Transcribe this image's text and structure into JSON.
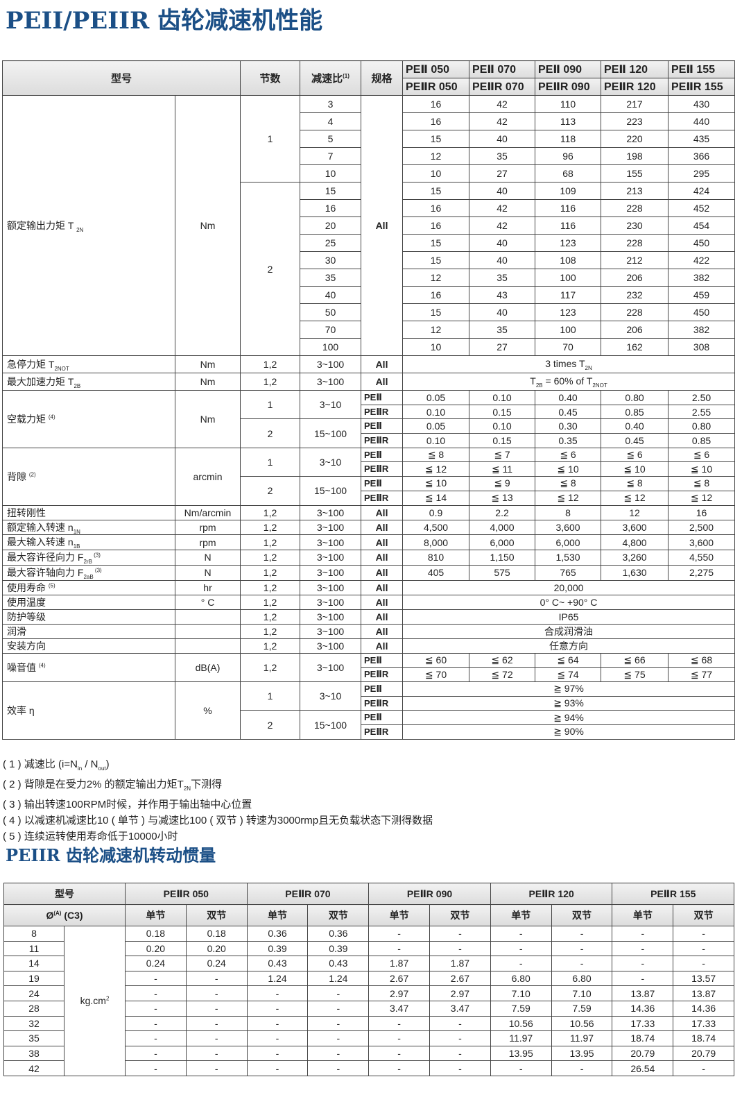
{
  "title": "PEII/PEIIR 齿轮减速机性能",
  "header": {
    "model": "型号",
    "stages": "节数",
    "ratio": "减速比",
    "ratio_note": "(1)",
    "spec": "规格",
    "models_a": [
      "PEⅡ 050",
      "PEⅡ 070",
      "PEⅡ 090",
      "PEⅡ 120",
      "PEⅡ 155"
    ],
    "models_b": [
      "PEⅡR 050",
      "PEⅡR 070",
      "PEⅡR 090",
      "PEⅡR 120",
      "PEⅡR 155"
    ]
  },
  "torque": {
    "label": [
      "额定输出力矩 T ",
      {
        "sub": "2N"
      }
    ],
    "unit": "Nm",
    "spec": "All",
    "stages": [
      {
        "stage": "1",
        "rows": [
          [
            "3",
            [
              "16",
              "42",
              "110",
              "217",
              "430"
            ]
          ],
          [
            "4",
            [
              "16",
              "42",
              "113",
              "223",
              "440"
            ]
          ],
          [
            "5",
            [
              "15",
              "40",
              "118",
              "220",
              "435"
            ]
          ],
          [
            "7",
            [
              "12",
              "35",
              "96",
              "198",
              "366"
            ]
          ],
          [
            "10",
            [
              "10",
              "27",
              "68",
              "155",
              "295"
            ]
          ]
        ]
      },
      {
        "stage": "2",
        "rows": [
          [
            "15",
            [
              "15",
              "40",
              "109",
              "213",
              "424"
            ]
          ],
          [
            "16",
            [
              "16",
              "42",
              "116",
              "228",
              "452"
            ]
          ],
          [
            "20",
            [
              "16",
              "42",
              "116",
              "230",
              "454"
            ]
          ],
          [
            "25",
            [
              "15",
              "40",
              "123",
              "228",
              "450"
            ]
          ],
          [
            "30",
            [
              "15",
              "40",
              "108",
              "212",
              "422"
            ]
          ],
          [
            "35",
            [
              "12",
              "35",
              "100",
              "206",
              "382"
            ]
          ],
          [
            "40",
            [
              "16",
              "43",
              "117",
              "232",
              "459"
            ]
          ],
          [
            "50",
            [
              "15",
              "40",
              "123",
              "228",
              "450"
            ]
          ],
          [
            "70",
            [
              "12",
              "35",
              "100",
              "206",
              "382"
            ]
          ],
          [
            "100",
            [
              "10",
              "27",
              "70",
              "162",
              "308"
            ]
          ]
        ]
      }
    ]
  },
  "blocks": [
    {
      "label": [
        "急停力矩 T",
        {
          "sub": "2NOT"
        }
      ],
      "unit": "Nm",
      "groups": [
        {
          "stage": "1,2",
          "ratio": "3~100",
          "rows": [
            {
              "spec": "All",
              "merged": [
                "3 times T",
                {
                  "sub": "2N"
                }
              ]
            }
          ]
        }
      ]
    },
    {
      "label": [
        "最大加速力矩 T",
        {
          "sub": "2B"
        }
      ],
      "unit": "Nm",
      "groups": [
        {
          "stage": "1,2",
          "ratio": "3~100",
          "rows": [
            {
              "spec": "All",
              "merged": [
                "T",
                {
                  "sub": "2B"
                },
                " = 60% of T",
                {
                  "sub": "2NOT"
                }
              ]
            }
          ]
        }
      ]
    },
    {
      "label": [
        "空载力矩 ",
        {
          "sup": "(4)"
        }
      ],
      "unit": "Nm",
      "groups": [
        {
          "stage": "1",
          "ratio": "3~10",
          "rows": [
            {
              "spec": "PEⅡ",
              "values": [
                "0.05",
                "0.10",
                "0.40",
                "0.80",
                "2.50"
              ]
            },
            {
              "spec": "PEⅡR",
              "values": [
                "0.10",
                "0.15",
                "0.45",
                "0.85",
                "2.55"
              ]
            }
          ]
        },
        {
          "stage": "2",
          "ratio": "15~100",
          "rows": [
            {
              "spec": "PEⅡ",
              "values": [
                "0.05",
                "0.10",
                "0.30",
                "0.40",
                "0.80"
              ]
            },
            {
              "spec": "PEⅡR",
              "values": [
                "0.10",
                "0.15",
                "0.35",
                "0.45",
                "0.85"
              ]
            }
          ]
        }
      ]
    },
    {
      "label": [
        "背隙 ",
        {
          "sup": "(2)"
        }
      ],
      "unit": "arcmin",
      "groups": [
        {
          "stage": "1",
          "ratio": "3~10",
          "rows": [
            {
              "spec": "PEⅡ",
              "values": [
                "≦ 8",
                "≦ 7",
                "≦ 6",
                "≦ 6",
                "≦ 6"
              ]
            },
            {
              "spec": "PEⅡR",
              "values": [
                "≦ 12",
                "≦ 11",
                "≦ 10",
                "≦ 10",
                "≦ 10"
              ]
            }
          ]
        },
        {
          "stage": "2",
          "ratio": "15~100",
          "rows": [
            {
              "spec": "PEⅡ",
              "values": [
                "≦ 10",
                "≦ 9",
                "≦ 8",
                "≦ 8",
                "≦ 8"
              ]
            },
            {
              "spec": "PEⅡR",
              "values": [
                "≦ 14",
                "≦ 13",
                "≦ 12",
                "≦ 12",
                "≦ 12"
              ]
            }
          ]
        }
      ]
    },
    {
      "label": [
        "扭转刚性"
      ],
      "unit": "Nm/arcmin",
      "groups": [
        {
          "stage": "1,2",
          "ratio": "3~100",
          "rows": [
            {
              "spec": "All",
              "values": [
                "0.9",
                "2.2",
                "8",
                "12",
                "16"
              ]
            }
          ]
        }
      ]
    },
    {
      "label": [
        "额定输入转速 n",
        {
          "sub": "1N"
        }
      ],
      "unit": "rpm",
      "groups": [
        {
          "stage": "1,2",
          "ratio": "3~100",
          "rows": [
            {
              "spec": "All",
              "values": [
                "4,500",
                "4,000",
                "3,600",
                "3,600",
                "2,500"
              ]
            }
          ]
        }
      ]
    },
    {
      "label": [
        "最大输入转速 n",
        {
          "sub": "1B"
        }
      ],
      "unit": "rpm",
      "groups": [
        {
          "stage": "1,2",
          "ratio": "3~100",
          "rows": [
            {
              "spec": "All",
              "values": [
                "8,000",
                "6,000",
                "6,000",
                "4,800",
                "3,600"
              ]
            }
          ]
        }
      ]
    },
    {
      "label": [
        "最大容许径向力 F",
        {
          "sub": "2rB"
        },
        {
          "sup": " (3)"
        }
      ],
      "unit": "N",
      "groups": [
        {
          "stage": "1,2",
          "ratio": "3~100",
          "rows": [
            {
              "spec": "All",
              "values": [
                "810",
                "1,150",
                "1,530",
                "3,260",
                "4,550"
              ]
            }
          ]
        }
      ]
    },
    {
      "label": [
        "最大容许轴向力 F",
        {
          "sub": "2aB"
        },
        {
          "sup": " (3)"
        }
      ],
      "unit": "N",
      "groups": [
        {
          "stage": "1,2",
          "ratio": "3~100",
          "rows": [
            {
              "spec": "All",
              "values": [
                "405",
                "575",
                "765",
                "1,630",
                "2,275"
              ]
            }
          ]
        }
      ]
    },
    {
      "label": [
        "使用寿命 ",
        {
          "sup": "(5)"
        }
      ],
      "unit": "hr",
      "groups": [
        {
          "stage": "1,2",
          "ratio": "3~100",
          "rows": [
            {
              "spec": "All",
              "merged": "20,000"
            }
          ]
        }
      ]
    },
    {
      "label": [
        "使用温度"
      ],
      "unit": "° C",
      "groups": [
        {
          "stage": "1,2",
          "ratio": "3~100",
          "rows": [
            {
              "spec": "All",
              "merged": "0° C~ +90° C"
            }
          ]
        }
      ]
    },
    {
      "label": [
        "防护等级"
      ],
      "unit": "",
      "groups": [
        {
          "stage": "1,2",
          "ratio": "3~100",
          "rows": [
            {
              "spec": "All",
              "merged": "IP65"
            }
          ]
        }
      ]
    },
    {
      "label": [
        "润滑"
      ],
      "unit": "",
      "groups": [
        {
          "stage": "1,2",
          "ratio": "3~100",
          "rows": [
            {
              "spec": "All",
              "merged": "合成润滑油"
            }
          ]
        }
      ]
    },
    {
      "label": [
        "安装方向"
      ],
      "unit": "",
      "groups": [
        {
          "stage": "1,2",
          "ratio": "3~100",
          "rows": [
            {
              "spec": "All",
              "merged": "任意方向"
            }
          ]
        }
      ]
    },
    {
      "label": [
        "噪音值 ",
        {
          "sup": "(4)"
        }
      ],
      "unit": "dB(A)",
      "groups": [
        {
          "stage": "1,2",
          "ratio": "3~100",
          "rows": [
            {
              "spec": "PEⅡ",
              "values": [
                "≦ 60",
                "≦ 62",
                "≦ 64",
                "≦ 66",
                "≦ 68"
              ]
            },
            {
              "spec": "PEⅡR",
              "values": [
                "≦ 70",
                "≦ 72",
                "≦ 74",
                "≦ 75",
                "≦ 77"
              ]
            }
          ]
        }
      ]
    },
    {
      "label": [
        "效率 η"
      ],
      "unit": "%",
      "groups": [
        {
          "stage": "1",
          "ratio": "3~10",
          "rows": [
            {
              "spec": "PEⅡ",
              "merged": "≧ 97%"
            },
            {
              "spec": "PEⅡR",
              "merged": "≧ 93%"
            }
          ]
        },
        {
          "stage": "2",
          "ratio": "15~100",
          "rows": [
            {
              "spec": "PEⅡ",
              "merged": "≧ 94%"
            },
            {
              "spec": "PEⅡR",
              "merged": "≧ 90%"
            }
          ]
        }
      ]
    }
  ],
  "notes": [
    [
      "( 1 ) 减速比 (i=N",
      {
        "sub": "in"
      },
      " / N",
      {
        "sub": "out"
      },
      ")"
    ],
    [
      "( 2 ) 背隙是在受力2% 的额定输出力矩T",
      {
        "sub": "2N"
      },
      "下测得"
    ],
    [
      "( 3 ) 输出转速100RPM时候，并作用于输出轴中心位置"
    ],
    [
      "( 4 ) 以减速机减速比10 ( 单节 ) 与减速比100 ( 双节 ) 转速为3000rmp且无负载状态下测得数据"
    ],
    [
      "( 5 ) 连续运转使用寿命低于10000小时"
    ]
  ],
  "inertia": {
    "title": "PEIIR 齿轮减速机转动惯量",
    "model_label": "型号",
    "dia_label": [
      "Ø",
      {
        "sup": "(A)"
      },
      " (C3)"
    ],
    "models": [
      "PEⅡR 050",
      "PEⅡR 070",
      "PEⅡR 090",
      "PEⅡR 120",
      "PEⅡR 155"
    ],
    "single": "单节",
    "double": "双节",
    "unit": [
      "kg.cm",
      {
        "sup": "2"
      }
    ],
    "rows": [
      [
        "8",
        [
          "0.18",
          "0.18",
          "0.36",
          "0.36",
          "-",
          "-",
          "-",
          "-",
          "-",
          "-"
        ]
      ],
      [
        "11",
        [
          "0.20",
          "0.20",
          "0.39",
          "0.39",
          "-",
          "-",
          "-",
          "-",
          "-",
          "-"
        ]
      ],
      [
        "14",
        [
          "0.24",
          "0.24",
          "0.43",
          "0.43",
          "1.87",
          "1.87",
          "-",
          "-",
          "-",
          "-"
        ]
      ],
      [
        "19",
        [
          "-",
          "-",
          "1.24",
          "1.24",
          "2.67",
          "2.67",
          "6.80",
          "6.80",
          "-",
          "13.57"
        ]
      ],
      [
        "24",
        [
          "-",
          "-",
          "-",
          "-",
          "2.97",
          "2.97",
          "7.10",
          "7.10",
          "13.87",
          "13.87"
        ]
      ],
      [
        "28",
        [
          "-",
          "-",
          "-",
          "-",
          "3.47",
          "3.47",
          "7.59",
          "7.59",
          "14.36",
          "14.36"
        ]
      ],
      [
        "32",
        [
          "-",
          "-",
          "-",
          "-",
          "-",
          "-",
          "10.56",
          "10.56",
          "17.33",
          "17.33"
        ]
      ],
      [
        "35",
        [
          "-",
          "-",
          "-",
          "-",
          "-",
          "-",
          "11.97",
          "11.97",
          "18.74",
          "18.74"
        ]
      ],
      [
        "38",
        [
          "-",
          "-",
          "-",
          "-",
          "-",
          "-",
          "13.95",
          "13.95",
          "20.79",
          "20.79"
        ]
      ],
      [
        "42",
        [
          "-",
          "-",
          "-",
          "-",
          "-",
          "-",
          "-",
          "-",
          "26.54",
          "-"
        ]
      ]
    ]
  }
}
